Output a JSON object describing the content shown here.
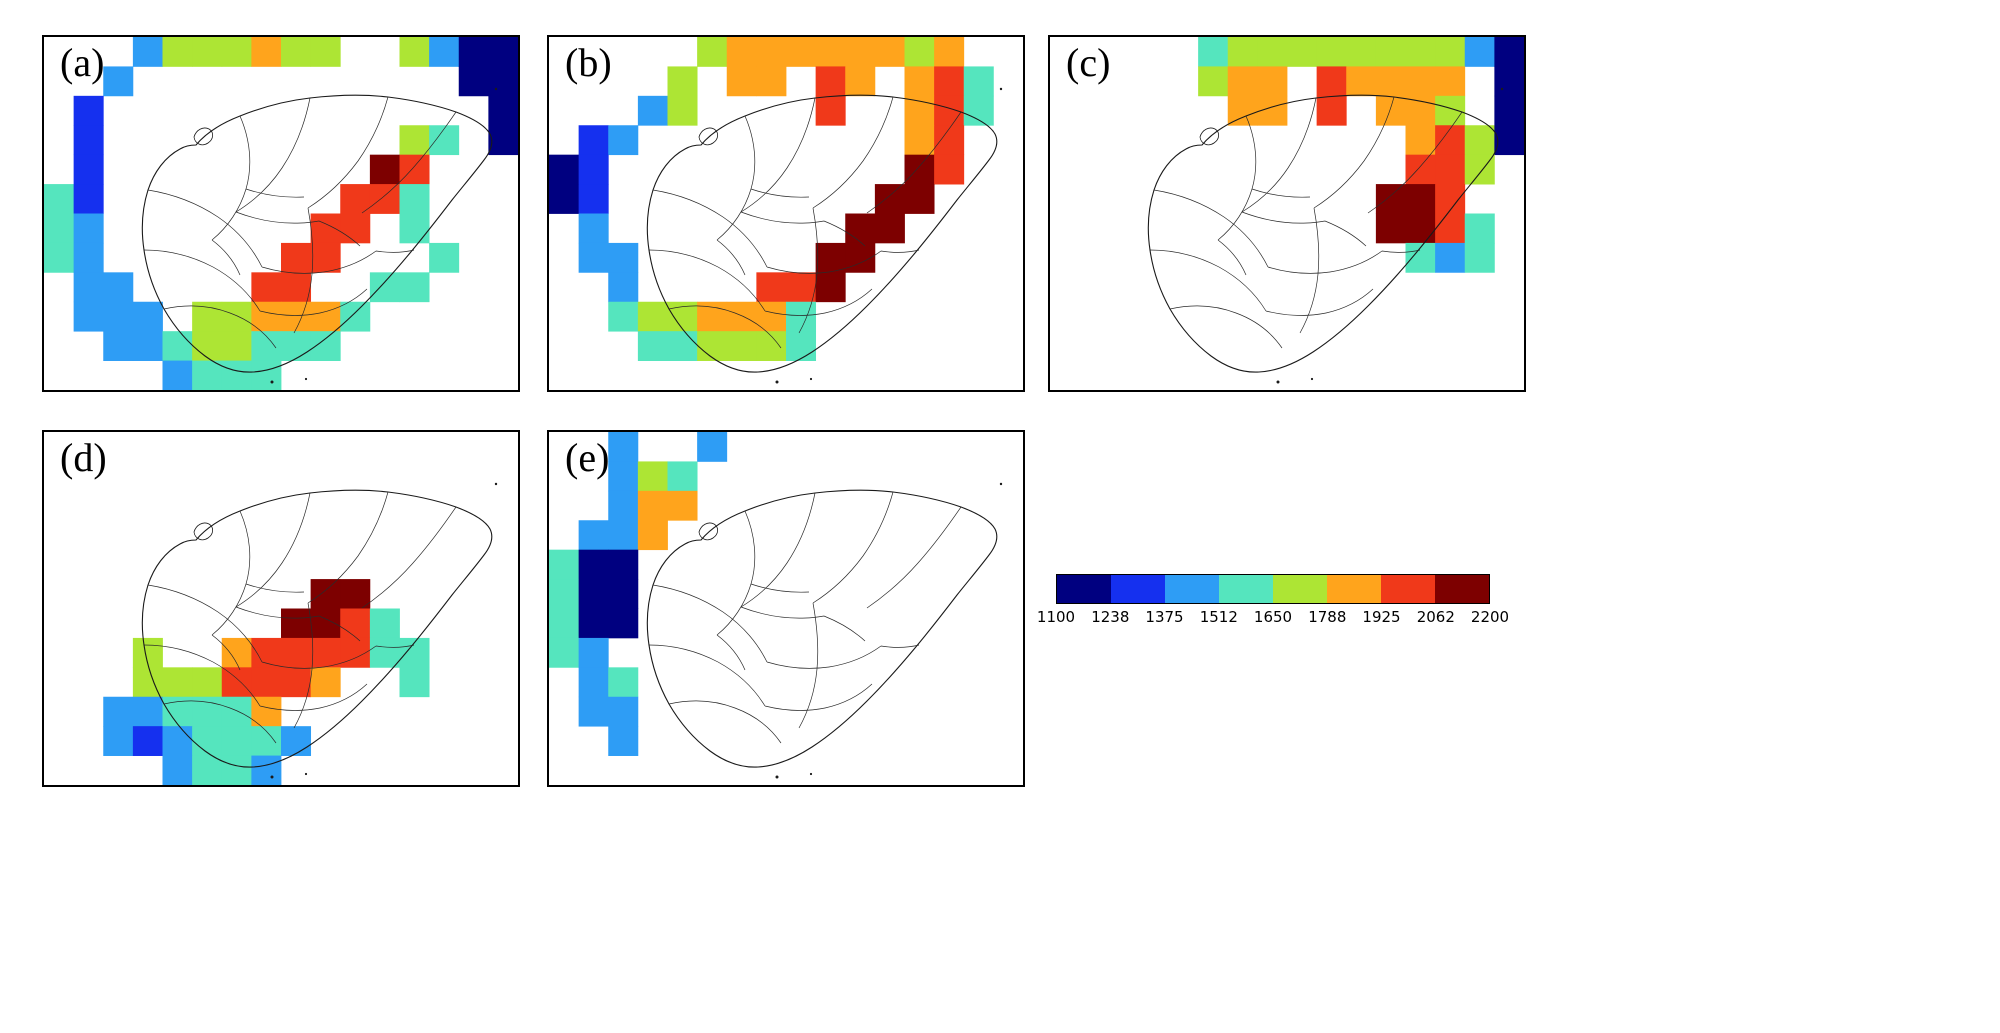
{
  "chart_data": {
    "type": "heatmap",
    "description_label": "",
    "grid": {
      "cols": 16,
      "rows": 12
    },
    "panels": [
      {
        "label": "(a)",
        "cells": [
          [
            3,
            0,
            2
          ],
          [
            4,
            0,
            4
          ],
          [
            5,
            0,
            4
          ],
          [
            6,
            0,
            4
          ],
          [
            7,
            0,
            5
          ],
          [
            8,
            0,
            4
          ],
          [
            9,
            0,
            4
          ],
          [
            12,
            0,
            4
          ],
          [
            13,
            0,
            2
          ],
          [
            14,
            0,
            0
          ],
          [
            15,
            0,
            0
          ],
          [
            2,
            1,
            2
          ],
          [
            14,
            1,
            0
          ],
          [
            15,
            1,
            0
          ],
          [
            1,
            2,
            1
          ],
          [
            15,
            2,
            0
          ],
          [
            1,
            3,
            1
          ],
          [
            12,
            3,
            4
          ],
          [
            13,
            3,
            3
          ],
          [
            15,
            3,
            0
          ],
          [
            1,
            4,
            1
          ],
          [
            11,
            4,
            7
          ],
          [
            12,
            4,
            6
          ],
          [
            0,
            5,
            3
          ],
          [
            1,
            5,
            1
          ],
          [
            10,
            5,
            6
          ],
          [
            11,
            5,
            6
          ],
          [
            12,
            5,
            3
          ],
          [
            0,
            6,
            3
          ],
          [
            1,
            6,
            2
          ],
          [
            9,
            6,
            6
          ],
          [
            10,
            6,
            6
          ],
          [
            12,
            6,
            3
          ],
          [
            0,
            7,
            3
          ],
          [
            1,
            7,
            2
          ],
          [
            8,
            7,
            6
          ],
          [
            9,
            7,
            6
          ],
          [
            13,
            7,
            3
          ],
          [
            1,
            8,
            2
          ],
          [
            2,
            8,
            2
          ],
          [
            7,
            8,
            6
          ],
          [
            8,
            8,
            6
          ],
          [
            11,
            8,
            3
          ],
          [
            12,
            8,
            3
          ],
          [
            1,
            9,
            2
          ],
          [
            2,
            9,
            2
          ],
          [
            3,
            9,
            2
          ],
          [
            5,
            9,
            4
          ],
          [
            6,
            9,
            4
          ],
          [
            7,
            9,
            5
          ],
          [
            8,
            9,
            5
          ],
          [
            9,
            9,
            5
          ],
          [
            10,
            9,
            3
          ],
          [
            2,
            10,
            2
          ],
          [
            3,
            10,
            2
          ],
          [
            4,
            10,
            3
          ],
          [
            5,
            10,
            4
          ],
          [
            6,
            10,
            4
          ],
          [
            7,
            10,
            3
          ],
          [
            8,
            10,
            3
          ],
          [
            9,
            10,
            3
          ],
          [
            4,
            11,
            2
          ],
          [
            5,
            11,
            3
          ],
          [
            6,
            11,
            3
          ],
          [
            7,
            11,
            3
          ]
        ]
      },
      {
        "label": "(b)",
        "cells": [
          [
            5,
            0,
            4
          ],
          [
            6,
            0,
            5
          ],
          [
            7,
            0,
            5
          ],
          [
            8,
            0,
            5
          ],
          [
            9,
            0,
            5
          ],
          [
            10,
            0,
            5
          ],
          [
            11,
            0,
            5
          ],
          [
            12,
            0,
            4
          ],
          [
            13,
            0,
            5
          ],
          [
            4,
            1,
            4
          ],
          [
            6,
            1,
            5
          ],
          [
            7,
            1,
            5
          ],
          [
            9,
            1,
            6
          ],
          [
            10,
            1,
            5
          ],
          [
            12,
            1,
            5
          ],
          [
            13,
            1,
            6
          ],
          [
            14,
            1,
            3
          ],
          [
            3,
            2,
            2
          ],
          [
            4,
            2,
            4
          ],
          [
            9,
            2,
            6
          ],
          [
            12,
            2,
            5
          ],
          [
            13,
            2,
            6
          ],
          [
            14,
            2,
            3
          ],
          [
            1,
            3,
            1
          ],
          [
            2,
            3,
            2
          ],
          [
            12,
            3,
            5
          ],
          [
            13,
            3,
            6
          ],
          [
            0,
            4,
            0
          ],
          [
            1,
            4,
            1
          ],
          [
            12,
            4,
            7
          ],
          [
            13,
            4,
            6
          ],
          [
            0,
            5,
            0
          ],
          [
            1,
            5,
            1
          ],
          [
            11,
            5,
            7
          ],
          [
            12,
            5,
            7
          ],
          [
            1,
            6,
            2
          ],
          [
            10,
            6,
            7
          ],
          [
            11,
            6,
            7
          ],
          [
            1,
            7,
            2
          ],
          [
            2,
            7,
            2
          ],
          [
            9,
            7,
            7
          ],
          [
            10,
            7,
            7
          ],
          [
            2,
            8,
            2
          ],
          [
            7,
            8,
            6
          ],
          [
            8,
            8,
            6
          ],
          [
            9,
            8,
            7
          ],
          [
            2,
            9,
            3
          ],
          [
            3,
            9,
            4
          ],
          [
            4,
            9,
            4
          ],
          [
            5,
            9,
            5
          ],
          [
            6,
            9,
            5
          ],
          [
            7,
            9,
            5
          ],
          [
            8,
            9,
            3
          ],
          [
            3,
            10,
            3
          ],
          [
            4,
            10,
            3
          ],
          [
            5,
            10,
            4
          ],
          [
            6,
            10,
            4
          ],
          [
            7,
            10,
            4
          ],
          [
            8,
            10,
            3
          ]
        ]
      },
      {
        "label": "(c)",
        "cells": [
          [
            5,
            0,
            3
          ],
          [
            6,
            0,
            4
          ],
          [
            7,
            0,
            4
          ],
          [
            8,
            0,
            4
          ],
          [
            9,
            0,
            4
          ],
          [
            10,
            0,
            4
          ],
          [
            11,
            0,
            4
          ],
          [
            12,
            0,
            4
          ],
          [
            13,
            0,
            4
          ],
          [
            14,
            0,
            2
          ],
          [
            15,
            0,
            0
          ],
          [
            5,
            1,
            4
          ],
          [
            6,
            1,
            5
          ],
          [
            7,
            1,
            5
          ],
          [
            9,
            1,
            6
          ],
          [
            10,
            1,
            5
          ],
          [
            11,
            1,
            5
          ],
          [
            12,
            1,
            5
          ],
          [
            13,
            1,
            5
          ],
          [
            15,
            1,
            0
          ],
          [
            6,
            2,
            5
          ],
          [
            7,
            2,
            5
          ],
          [
            9,
            2,
            6
          ],
          [
            11,
            2,
            5
          ],
          [
            12,
            2,
            5
          ],
          [
            13,
            2,
            4
          ],
          [
            15,
            2,
            0
          ],
          [
            12,
            3,
            5
          ],
          [
            13,
            3,
            6
          ],
          [
            14,
            3,
            4
          ],
          [
            15,
            3,
            0
          ],
          [
            12,
            4,
            6
          ],
          [
            13,
            4,
            6
          ],
          [
            14,
            4,
            4
          ],
          [
            11,
            5,
            7
          ],
          [
            12,
            5,
            7
          ],
          [
            13,
            5,
            6
          ],
          [
            11,
            6,
            7
          ],
          [
            12,
            6,
            7
          ],
          [
            13,
            6,
            6
          ],
          [
            14,
            6,
            3
          ],
          [
            12,
            7,
            3
          ],
          [
            13,
            7,
            2
          ],
          [
            14,
            7,
            3
          ]
        ]
      },
      {
        "label": "(d)",
        "cells": [
          [
            3,
            7,
            4
          ],
          [
            9,
            5,
            7
          ],
          [
            10,
            5,
            7
          ],
          [
            8,
            6,
            7
          ],
          [
            9,
            6,
            7
          ],
          [
            10,
            6,
            6
          ],
          [
            11,
            6,
            3
          ],
          [
            6,
            7,
            5
          ],
          [
            7,
            7,
            6
          ],
          [
            8,
            7,
            6
          ],
          [
            9,
            7,
            6
          ],
          [
            10,
            7,
            6
          ],
          [
            11,
            7,
            3
          ],
          [
            12,
            7,
            3
          ],
          [
            3,
            8,
            4
          ],
          [
            4,
            8,
            4
          ],
          [
            5,
            8,
            4
          ],
          [
            6,
            8,
            6
          ],
          [
            7,
            8,
            6
          ],
          [
            8,
            8,
            6
          ],
          [
            9,
            8,
            5
          ],
          [
            12,
            8,
            3
          ],
          [
            2,
            9,
            2
          ],
          [
            3,
            9,
            2
          ],
          [
            4,
            9,
            3
          ],
          [
            5,
            9,
            3
          ],
          [
            6,
            9,
            3
          ],
          [
            7,
            9,
            5
          ],
          [
            2,
            10,
            2
          ],
          [
            3,
            10,
            1
          ],
          [
            4,
            10,
            2
          ],
          [
            5,
            10,
            3
          ],
          [
            6,
            10,
            3
          ],
          [
            7,
            10,
            3
          ],
          [
            8,
            10,
            2
          ],
          [
            4,
            11,
            2
          ],
          [
            5,
            11,
            3
          ],
          [
            6,
            11,
            3
          ],
          [
            7,
            11,
            2
          ]
        ]
      },
      {
        "label": "(e)",
        "cells": [
          [
            5,
            0,
            2
          ],
          [
            2,
            0,
            2
          ],
          [
            2,
            1,
            2
          ],
          [
            3,
            1,
            4
          ],
          [
            4,
            1,
            3
          ],
          [
            2,
            2,
            2
          ],
          [
            3,
            2,
            5
          ],
          [
            4,
            2,
            5
          ],
          [
            1,
            3,
            2
          ],
          [
            2,
            3,
            2
          ],
          [
            3,
            3,
            5
          ],
          [
            0,
            4,
            3
          ],
          [
            1,
            4,
            0
          ],
          [
            2,
            4,
            0
          ],
          [
            0,
            5,
            3
          ],
          [
            1,
            5,
            0
          ],
          [
            2,
            5,
            0
          ],
          [
            0,
            6,
            3
          ],
          [
            1,
            6,
            0
          ],
          [
            2,
            6,
            0
          ],
          [
            0,
            7,
            3
          ],
          [
            1,
            7,
            2
          ],
          [
            1,
            8,
            2
          ],
          [
            2,
            8,
            3
          ],
          [
            1,
            9,
            2
          ],
          [
            2,
            9,
            2
          ],
          [
            2,
            10,
            2
          ]
        ]
      }
    ],
    "colorbar": {
      "orientation": "horizontal",
      "boundaries": [
        "1100",
        "1238",
        "1375",
        "1512",
        "1650",
        "1788",
        "1925",
        "2062",
        "2200"
      ],
      "colors": [
        "#000080",
        "#1530EF",
        "#2E9DF5",
        "#55E5BE",
        "#ADE534",
        "#FFA41C",
        "#F0391A",
        "#7D0000"
      ]
    }
  }
}
